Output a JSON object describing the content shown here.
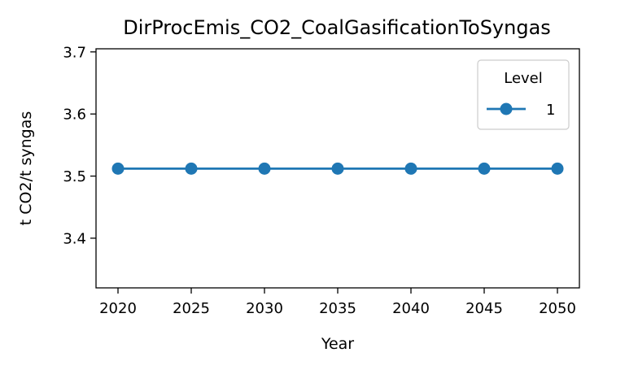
{
  "chart_data": {
    "type": "line",
    "title": "DirProcEmis_CO2_CoalGasificationToSyngas",
    "xlabel": "Year",
    "ylabel": "t CO2/t syngas",
    "x": [
      2020,
      2025,
      2030,
      2035,
      2040,
      2045,
      2050
    ],
    "xticks": [
      "2020",
      "2025",
      "2030",
      "2035",
      "2040",
      "2045",
      "2050"
    ],
    "yticks": [
      "3.4",
      "3.5",
      "3.6",
      "3.7"
    ],
    "ytick_values": [
      3.4,
      3.5,
      3.6,
      3.7
    ],
    "xlim": [
      2018.5,
      2051.5
    ],
    "ylim": [
      3.32,
      3.705
    ],
    "grid": false,
    "legend": {
      "title": "Level",
      "placement": "upper-right"
    },
    "series": [
      {
        "name": "1",
        "color": "#1f77b4",
        "marker": "circle",
        "values": [
          3.512,
          3.512,
          3.512,
          3.512,
          3.512,
          3.512,
          3.512
        ]
      }
    ]
  }
}
